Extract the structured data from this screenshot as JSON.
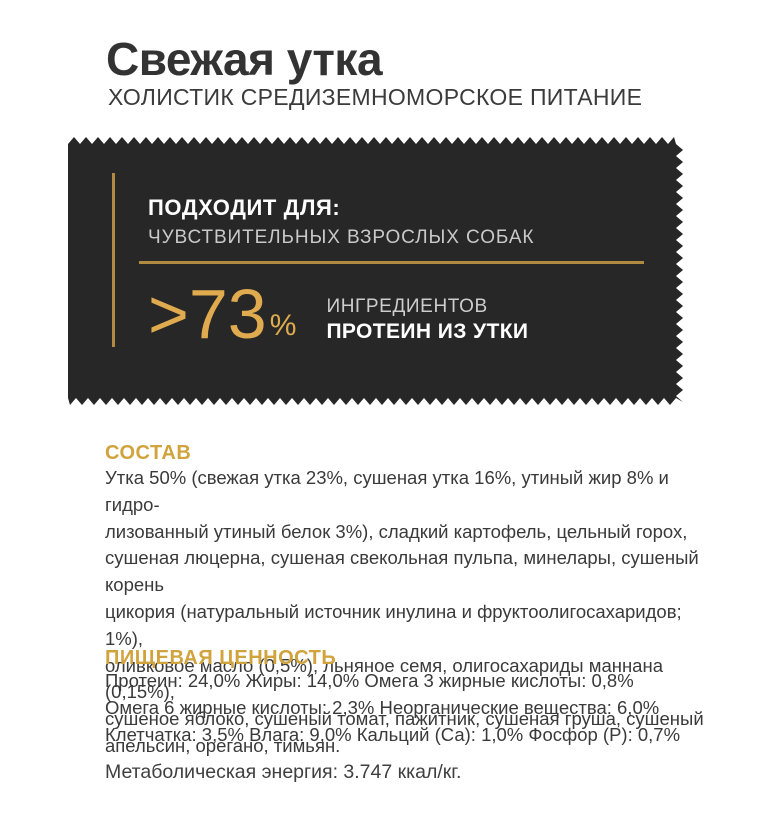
{
  "header": {
    "title": "Свежая утка",
    "subtitle": "ХОЛИСТИК СРЕДИЗЕМНОМОРСКОЕ ПИТАНИЕ"
  },
  "banner": {
    "suitable_for_label": "ПОДХОДИТ ДЛЯ:",
    "suitable_for_value": "ЧУВСТВИТЕЛЬНЫХ ВЗРОСЛЫХ СОБАК",
    "stat_number": ">73",
    "stat_percent_sign": "%",
    "stat_caption_line1": "ИНГРЕДИЕНТОВ",
    "stat_caption_line2": "ПРОТЕИН ИЗ УТКИ"
  },
  "composition": {
    "heading": "СОСТАВ",
    "lines": [
      "Утка 50% (свежая утка 23%, сушеная утка 16%, утиный жир 8% и гидро-",
      "лизованный утиный белок 3%), сладкий картофель, цельный горох,",
      "сушеная люцерна, сушеная свекольная пульпа, минелары, сушеный корень",
      "цикория (натуральный источник инулина и фруктоолигосахаридов; 1%),",
      "оливковое масло (0,5%), льняное семя, олигосахариды маннана (0,15%),",
      "сушеное яблоко, сушеный томат, пажитник, сушеная груша, сушеный",
      "апельсин, орегано, тимьян."
    ]
  },
  "nutrition": {
    "heading": "ПИЩЕВАЯ ЦЕННОСТЬ",
    "lines": [
      "Протеин: 24,0% Жиры: 14,0% Омега 3 жирные кислоты: 0,8%",
      "Омега 6 жирные кислоты: 2,3% Неорганические вещества: 6,0%",
      "Клетчатка: 3,5% Влага: 9,0% Кальций (Са): 1,0% Фосфор (Р):  0,7%"
    ]
  },
  "energy": {
    "text": "Метаболическая энергия:  3.747 ккал/кг."
  },
  "colors": {
    "accent_gold": "#D1A33C",
    "line_gold": "#B08A3E",
    "stat_gold": "#DFAB4E",
    "banner_bg": "#272727",
    "text_dark": "#3A3A3A"
  }
}
